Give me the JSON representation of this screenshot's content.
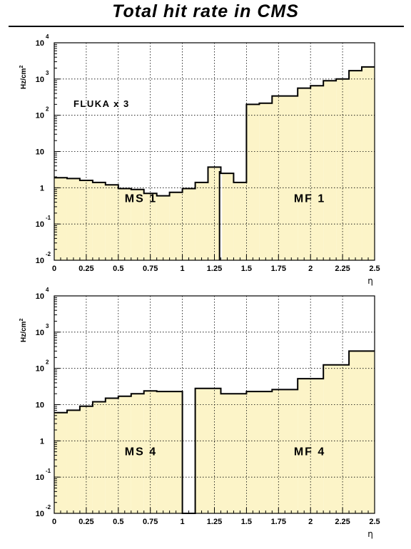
{
  "title": "Total hit rate in CMS",
  "colors": {
    "fill": "#fcf4c8",
    "line": "#000000",
    "grid": "#000000"
  },
  "chart_data": [
    {
      "type": "histogram",
      "name": "top",
      "ylabel": {
        "base": "Hz/cm",
        "sup": "2"
      },
      "xlabel": "η",
      "xlim": [
        0,
        2.5
      ],
      "ylim": [
        0.01,
        10000
      ],
      "log_y": true,
      "grid": true,
      "xticks": [
        "0",
        "0.25",
        "0.5",
        "0.75",
        "1",
        "1.25",
        "1.5",
        "1.75",
        "2",
        "2.25",
        "2.5"
      ],
      "yticks": [
        {
          "base": "10",
          "exp": "-2"
        },
        {
          "base": "10",
          "exp": "-1"
        },
        {
          "base": "1",
          "exp": ""
        },
        {
          "base": "10",
          "exp": ""
        },
        {
          "base": "10",
          "exp": "2"
        },
        {
          "base": "10",
          "exp": "3"
        },
        {
          "base": "10",
          "exp": "4"
        }
      ],
      "annotations": [
        {
          "text": "FLUKA x 3",
          "x": 0.15,
          "y": 170,
          "style": "mid"
        },
        {
          "text": "MS 1",
          "x": 0.55,
          "y": 0.4,
          "style": "big"
        },
        {
          "text": "MF 1",
          "x": 1.87,
          "y": 0.4,
          "style": "big"
        }
      ],
      "bins": [
        {
          "x0": 0.0,
          "x1": 0.1,
          "y": 1.9
        },
        {
          "x0": 0.1,
          "x1": 0.2,
          "y": 1.8
        },
        {
          "x0": 0.2,
          "x1": 0.3,
          "y": 1.6
        },
        {
          "x0": 0.3,
          "x1": 0.4,
          "y": 1.4
        },
        {
          "x0": 0.4,
          "x1": 0.5,
          "y": 1.2
        },
        {
          "x0": 0.5,
          "x1": 0.6,
          "y": 0.95
        },
        {
          "x0": 0.6,
          "x1": 0.7,
          "y": 0.9
        },
        {
          "x0": 0.7,
          "x1": 0.8,
          "y": 0.7
        },
        {
          "x0": 0.8,
          "x1": 0.9,
          "y": 0.6
        },
        {
          "x0": 0.9,
          "x1": 1.0,
          "y": 0.75
        },
        {
          "x0": 1.0,
          "x1": 1.1,
          "y": 0.95
        },
        {
          "x0": 1.1,
          "x1": 1.2,
          "y": 1.4
        },
        {
          "x0": 1.2,
          "x1": 1.3,
          "y": 3.7
        },
        {
          "x0": 1.3,
          "x1": 1.4,
          "y": 2.5
        },
        {
          "x0": 1.4,
          "x1": 1.5,
          "y": 1.4
        },
        {
          "x0": 1.5,
          "x1": 1.6,
          "y": 200
        },
        {
          "x0": 1.6,
          "x1": 1.7,
          "y": 215
        },
        {
          "x0": 1.7,
          "x1": 1.9,
          "y": 340
        },
        {
          "x0": 1.9,
          "x1": 2.0,
          "y": 560
        },
        {
          "x0": 2.0,
          "x1": 2.1,
          "y": 650
        },
        {
          "x0": 2.1,
          "x1": 2.2,
          "y": 900
        },
        {
          "x0": 2.2,
          "x1": 2.3,
          "y": 1000
        },
        {
          "x0": 2.3,
          "x1": 2.4,
          "y": 1700
        },
        {
          "x0": 2.4,
          "x1": 2.5,
          "y": 2150
        }
      ],
      "gaps": [
        {
          "x0": 1.29,
          "x1": 1.31
        }
      ]
    },
    {
      "type": "histogram",
      "name": "bottom",
      "ylabel": {
        "base": "Hz/cm",
        "sup": "2"
      },
      "xlabel": "η",
      "xlim": [
        0,
        2.5
      ],
      "ylim": [
        0.01,
        10000
      ],
      "log_y": true,
      "grid": true,
      "xticks": [
        "0",
        "0.25",
        "0.5",
        "0.75",
        "1",
        "1.25",
        "1.5",
        "1.75",
        "2",
        "2.25",
        "2.5"
      ],
      "yticks": [
        {
          "base": "10",
          "exp": "-2"
        },
        {
          "base": "10",
          "exp": "-1"
        },
        {
          "base": "1",
          "exp": ""
        },
        {
          "base": "10",
          "exp": ""
        },
        {
          "base": "10",
          "exp": "2"
        },
        {
          "base": "10",
          "exp": "3"
        },
        {
          "base": "10",
          "exp": "4"
        }
      ],
      "annotations": [
        {
          "text": "MS 4",
          "x": 0.55,
          "y": 0.4,
          "style": "big"
        },
        {
          "text": "MF 4",
          "x": 1.87,
          "y": 0.4,
          "style": "big"
        }
      ],
      "bins": [
        {
          "x0": 0.0,
          "x1": 0.1,
          "y": 6
        },
        {
          "x0": 0.1,
          "x1": 0.2,
          "y": 7
        },
        {
          "x0": 0.2,
          "x1": 0.3,
          "y": 9
        },
        {
          "x0": 0.3,
          "x1": 0.4,
          "y": 12
        },
        {
          "x0": 0.4,
          "x1": 0.5,
          "y": 15
        },
        {
          "x0": 0.5,
          "x1": 0.6,
          "y": 17
        },
        {
          "x0": 0.6,
          "x1": 0.7,
          "y": 20
        },
        {
          "x0": 0.7,
          "x1": 0.8,
          "y": 24
        },
        {
          "x0": 0.8,
          "x1": 1.0,
          "y": 23
        },
        {
          "x0": 1.0,
          "x1": 1.1,
          "y": 0.01
        },
        {
          "x0": 1.1,
          "x1": 1.3,
          "y": 28
        },
        {
          "x0": 1.3,
          "x1": 1.5,
          "y": 20
        },
        {
          "x0": 1.5,
          "x1": 1.7,
          "y": 23
        },
        {
          "x0": 1.7,
          "x1": 1.9,
          "y": 26
        },
        {
          "x0": 1.9,
          "x1": 2.1,
          "y": 52
        },
        {
          "x0": 2.1,
          "x1": 2.3,
          "y": 125
        },
        {
          "x0": 2.3,
          "x1": 2.5,
          "y": 300
        }
      ],
      "gaps": []
    }
  ]
}
